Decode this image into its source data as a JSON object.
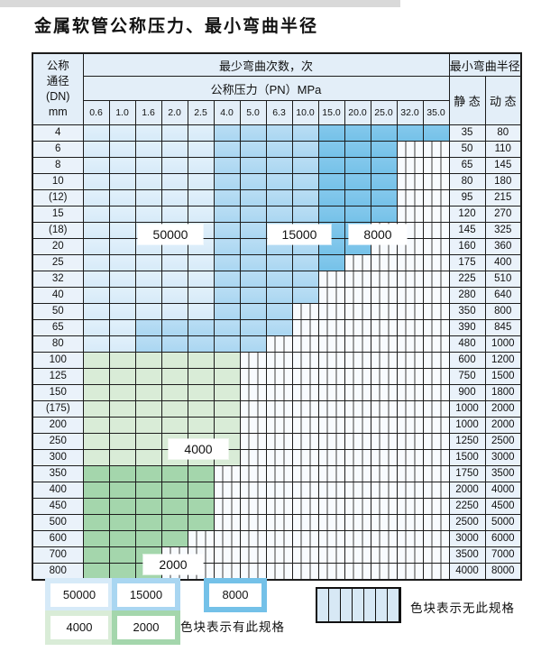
{
  "title": "金属软管公称压力、最小弯曲半径",
  "table": {
    "dn_header_lines": [
      "公称",
      "通径",
      "(DN)",
      "mm"
    ],
    "bend_cycles_header": "最少弯曲次数，次",
    "pressure_header": "公称压力（PN）MPa",
    "radius_header": "最小弯曲半径",
    "static_header": "静 态",
    "dynamic_header": "动 态",
    "pressure_cols": [
      "0.6",
      "1.0",
      "1.6",
      "2.0",
      "2.5",
      "4.0",
      "5.0",
      "6.3",
      "10.0",
      "15.0",
      "20.0",
      "25.0",
      "32.0",
      "35.0"
    ],
    "zone_legend_key": {
      "L": "50000",
      "M": "15000",
      "D": "8000",
      "G": "4000",
      "H": "2000",
      "X": "no-spec"
    },
    "rows": [
      {
        "dn": "4",
        "cells": "LLLLLMMMMDDDDD",
        "static": "35",
        "dynamic": "80"
      },
      {
        "dn": "6",
        "cells": "LLLLLMMMMDDDXX",
        "static": "50",
        "dynamic": "110"
      },
      {
        "dn": "8",
        "cells": "LLLLLMMMMDDDXX",
        "static": "65",
        "dynamic": "145"
      },
      {
        "dn": "10",
        "cells": "LLLLLMMMMDDDXX",
        "static": "80",
        "dynamic": "180"
      },
      {
        "dn": "(12)",
        "cells": "LLLLLMMMMDDDXX",
        "static": "95",
        "dynamic": "215"
      },
      {
        "dn": "15",
        "cells": "LLLLLMMMMDDDXX",
        "static": "120",
        "dynamic": "270"
      },
      {
        "dn": "(18)",
        "cells": "LLLLLMMMMDDXXX",
        "static": "145",
        "dynamic": "325"
      },
      {
        "dn": "20",
        "cells": "LLLLLMMMMDDXXX",
        "static": "160",
        "dynamic": "360"
      },
      {
        "dn": "25",
        "cells": "LLLLLMMMMDXXXX",
        "static": "175",
        "dynamic": "400"
      },
      {
        "dn": "32",
        "cells": "LLLLLMMMMXXXXX",
        "static": "225",
        "dynamic": "510"
      },
      {
        "dn": "40",
        "cells": "LLLLLMMMMXXXXX",
        "static": "280",
        "dynamic": "640"
      },
      {
        "dn": "50",
        "cells": "LLLLLMMMXXXXXX",
        "static": "350",
        "dynamic": "800"
      },
      {
        "dn": "65",
        "cells": "LLMMMMMMXXXXXX",
        "static": "390",
        "dynamic": "845"
      },
      {
        "dn": "80",
        "cells": "LLMMMMMXXXXXXX",
        "static": "480",
        "dynamic": "1000"
      },
      {
        "dn": "100",
        "cells": "GGGGGGXXXXXXXX",
        "static": "600",
        "dynamic": "1200"
      },
      {
        "dn": "125",
        "cells": "GGGGGGXXXXXXXX",
        "static": "750",
        "dynamic": "1500"
      },
      {
        "dn": "150",
        "cells": "GGGGGGXXXXXXXX",
        "static": "900",
        "dynamic": "1800"
      },
      {
        "dn": "(175)",
        "cells": "GGGGGGXXXXXXXX",
        "static": "1000",
        "dynamic": "2000"
      },
      {
        "dn": "200",
        "cells": "GGGGGGXXXXXXXX",
        "static": "1000",
        "dynamic": "2000"
      },
      {
        "dn": "250",
        "cells": "GGGGGGXXXXXXXX",
        "static": "1250",
        "dynamic": "2500"
      },
      {
        "dn": "300",
        "cells": "GGGGGGXXXXXXXX",
        "static": "1500",
        "dynamic": "3000"
      },
      {
        "dn": "350",
        "cells": "HHHHHXXXXXXXXX",
        "static": "1750",
        "dynamic": "3500"
      },
      {
        "dn": "400",
        "cells": "HHHHHXXXXXXXXX",
        "static": "2000",
        "dynamic": "4000"
      },
      {
        "dn": "450",
        "cells": "HHHHHXXXXXXXXX",
        "static": "2250",
        "dynamic": "4500"
      },
      {
        "dn": "500",
        "cells": "HHHHHXXXXXXXXX",
        "static": "2500",
        "dynamic": "5000"
      },
      {
        "dn": "600",
        "cells": "HHHHXXXXXXXXXX",
        "static": "3000",
        "dynamic": "6000"
      },
      {
        "dn": "700",
        "cells": "HHHXXXXXXXXXXX",
        "static": "3500",
        "dynamic": "7000"
      },
      {
        "dn": "800",
        "cells": "HHHXXXXXXXXXXX",
        "static": "4000",
        "dynamic": "8000"
      }
    ]
  },
  "overlays": {
    "b50000": "50000",
    "b15000": "15000",
    "b8000": "8000",
    "b4000": "4000",
    "b2000": "2000"
  },
  "legend": {
    "items": [
      {
        "label": "50000"
      },
      {
        "label": "15000"
      },
      {
        "label": "8000"
      },
      {
        "label": "4000"
      },
      {
        "label": "2000"
      }
    ],
    "has_spec_note": "色块表示有此规格",
    "no_spec_note": "色块表示无此规格"
  },
  "colors": {
    "c50000": "#d6eaf8",
    "c15000": "#a9d6f1",
    "c8000": "#74c1e8",
    "c4000": "#d9ecd7",
    "c2000": "#a4d6ac",
    "headerbg": "#e3eef8",
    "labelbg": "#eaf2fa"
  }
}
